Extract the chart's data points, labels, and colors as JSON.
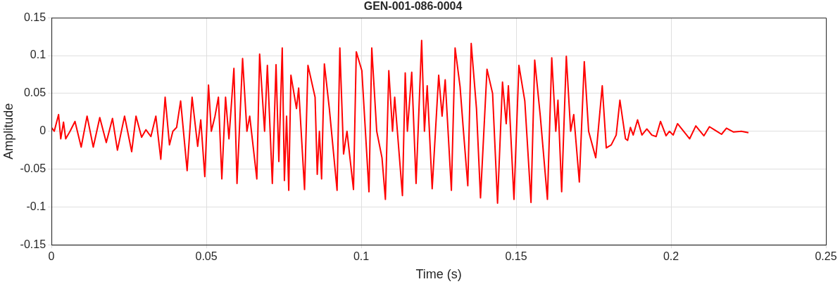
{
  "chart_data": {
    "type": "line",
    "title": "GEN-001-086-0004",
    "xlabel": "Time (s)",
    "ylabel": "Amplitude",
    "xlim": [
      0,
      0.25
    ],
    "xticks": [
      0,
      0.05,
      0.1,
      0.15,
      0.2,
      0.25
    ],
    "ylim": [
      -0.15,
      0.15
    ],
    "yticks": [
      -0.15,
      -0.1,
      -0.05,
      0,
      0.05,
      0.1,
      0.15
    ],
    "grid": true,
    "legend": false,
    "marker": "none",
    "line_style": "solid",
    "x": [
      0,
      0.0009,
      0.0023,
      0.003,
      0.0039,
      0.0046,
      0.006,
      0.0076,
      0.0096,
      0.0115,
      0.0135,
      0.0156,
      0.0177,
      0.0197,
      0.0213,
      0.0236,
      0.0259,
      0.0273,
      0.0291,
      0.0305,
      0.0321,
      0.0337,
      0.0353,
      0.0367,
      0.0381,
      0.0392,
      0.0404,
      0.0417,
      0.0438,
      0.0454,
      0.0472,
      0.0482,
      0.0495,
      0.0507,
      0.0516,
      0.0528,
      0.0539,
      0.055,
      0.0562,
      0.0573,
      0.0589,
      0.0599,
      0.0617,
      0.0631,
      0.064,
      0.0663,
      0.0672,
      0.0688,
      0.0697,
      0.0713,
      0.0725,
      0.0734,
      0.0745,
      0.0752,
      0.0759,
      0.0766,
      0.0773,
      0.0791,
      0.0798,
      0.0817,
      0.0828,
      0.0851,
      0.0858,
      0.0865,
      0.0872,
      0.0881,
      0.0897,
      0.0922,
      0.0931,
      0.0943,
      0.0954,
      0.0975,
      0.0984,
      0.1002,
      0.1025,
      0.1034,
      0.105,
      0.1067,
      0.1078,
      0.1089,
      0.1101,
      0.1108,
      0.1133,
      0.1142,
      0.1149,
      0.1163,
      0.1177,
      0.1195,
      0.1204,
      0.1213,
      0.1229,
      0.125,
      0.1261,
      0.1271,
      0.1291,
      0.1303,
      0.1319,
      0.133,
      0.1344,
      0.1355,
      0.1372,
      0.1385,
      0.1406,
      0.1424,
      0.144,
      0.1456,
      0.1468,
      0.1475,
      0.1493,
      0.1509,
      0.1528,
      0.1548,
      0.156,
      0.1578,
      0.1601,
      0.1615,
      0.1628,
      0.1635,
      0.1647,
      0.1662,
      0.1676,
      0.1686,
      0.1704,
      0.172,
      0.1734,
      0.1757,
      0.1778,
      0.1791,
      0.1807,
      0.1823,
      0.1835,
      0.1853,
      0.186,
      0.1869,
      0.1878,
      0.1892,
      0.1906,
      0.1922,
      0.1938,
      0.1952,
      0.1966,
      0.1984,
      0.1995,
      0.2007,
      0.2021,
      0.206,
      0.208,
      0.2106,
      0.2124,
      0.2163,
      0.2179,
      0.2202,
      0.2227,
      0.225
    ],
    "series": [
      {
        "color": "#ff0000",
        "values": [
          0.005,
          0,
          0.022,
          -0.01,
          0.012,
          -0.01,
          0,
          0.013,
          -0.021,
          0.02,
          -0.021,
          0.018,
          -0.015,
          0.017,
          -0.025,
          0.02,
          -0.027,
          0.02,
          -0.008,
          0.002,
          -0.007,
          0.02,
          -0.037,
          0.045,
          -0.018,
          0,
          0.005,
          0.04,
          -0.052,
          0.045,
          -0.02,
          0.015,
          -0.06,
          0.061,
          0,
          0.02,
          0.045,
          -0.063,
          0.045,
          -0.01,
          0.083,
          -0.069,
          0.096,
          0,
          0.02,
          -0.063,
          0.102,
          0,
          0.087,
          -0.069,
          0.088,
          -0.04,
          0.11,
          -0.065,
          0.02,
          -0.078,
          0.074,
          0.03,
          0.057,
          -0.077,
          0.087,
          0.045,
          -0.057,
          0,
          -0.063,
          0.089,
          0.03,
          -0.078,
          0.11,
          -0.03,
          0,
          -0.077,
          0.105,
          0.08,
          -0.08,
          0.11,
          0,
          -0.035,
          -0.09,
          0.08,
          0,
          0.045,
          -0.085,
          0.077,
          0,
          0.078,
          -0.069,
          0.12,
          0,
          0.06,
          -0.076,
          0.074,
          0.02,
          0.068,
          -0.078,
          0.11,
          0.059,
          0,
          -0.072,
          0.116,
          0.03,
          -0.088,
          0.082,
          0.05,
          -0.095,
          0.065,
          0.01,
          0.06,
          -0.09,
          0.087,
          0.04,
          -0.094,
          0.094,
          0.02,
          -0.09,
          0.097,
          0,
          0.041,
          -0.08,
          0.099,
          0,
          0.022,
          -0.067,
          0.092,
          0,
          -0.035,
          0.06,
          -0.022,
          -0.018,
          -0.005,
          0.041,
          -0.01,
          -0.012,
          0.005,
          -0.005,
          0.015,
          -0.005,
          0.003,
          -0.005,
          -0.007,
          0.013,
          -0.006,
          0,
          -0.005,
          0.01,
          -0.01,
          0.007,
          -0.006,
          0.006,
          -0.004,
          0.004,
          -0.001,
          0,
          -0.002
        ]
      }
    ]
  }
}
